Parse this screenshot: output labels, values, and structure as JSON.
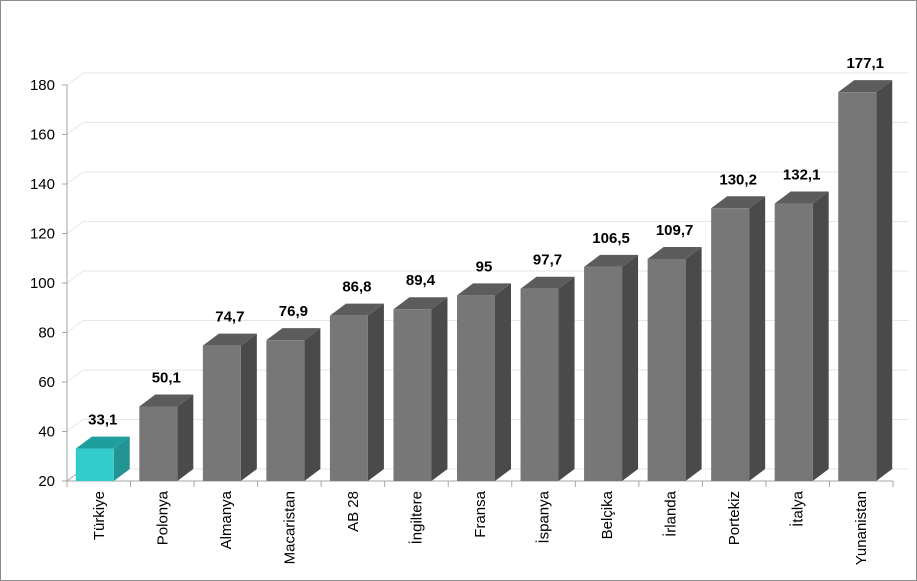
{
  "chart_data": {
    "type": "bar",
    "categories": [
      "Türkiye",
      "Polonya",
      "Almanya",
      "Macaristan",
      "AB 28",
      "İngiltere",
      "Fransa",
      "İspanya",
      "Belçika",
      "İrlanda",
      "Portekiz",
      "İtalya",
      "Yunanistan"
    ],
    "values": [
      33.1,
      50.1,
      74.7,
      76.9,
      86.8,
      89.4,
      95,
      97.7,
      106.5,
      109.7,
      130.2,
      132.1,
      177.1
    ],
    "data_labels": [
      "33,1",
      "50,1",
      "74,7",
      "76,9",
      "86,8",
      "89,4",
      "95",
      "97,7",
      "106,5",
      "109,7",
      "130,2",
      "132,1",
      "177,1"
    ],
    "title": "",
    "xlabel": "",
    "ylabel": "",
    "ylim": [
      20,
      180
    ],
    "yticks": [
      20,
      40,
      60,
      80,
      100,
      120,
      140,
      160,
      180
    ],
    "ytick_labels": [
      "20",
      "40",
      "60",
      "80",
      "100",
      "120",
      "140",
      "160",
      "180"
    ],
    "grid": true,
    "bar_style": "3d-column",
    "colors": {
      "bar_front": "#777777",
      "bar_top": "#5c5c5c",
      "bar_side": "#4a4a4a",
      "highlight_front": "#33cccc",
      "highlight_top": "#1f9e9e",
      "highlight_side": "#239494",
      "grid": "#e6e6e6",
      "axis": "#a6a6a6"
    },
    "highlight_index": 0
  }
}
